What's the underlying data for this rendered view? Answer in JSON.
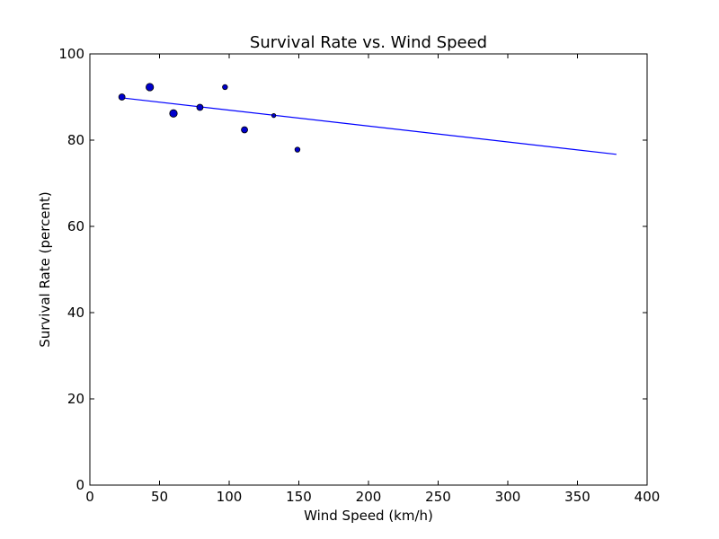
{
  "chart_data": {
    "type": "scatter",
    "title": "Survival Rate vs. Wind Speed",
    "xlabel": "Wind Speed (km/h)",
    "ylabel": "Survival Rate (percent)",
    "xlim": [
      0,
      400
    ],
    "ylim": [
      0,
      100
    ],
    "xticks": [
      "0",
      "50",
      "100",
      "150",
      "200",
      "250",
      "300",
      "350",
      "400"
    ],
    "yticks": [
      "0",
      "20",
      "40",
      "60",
      "80",
      "100"
    ],
    "grid": false,
    "legend": "none",
    "points": [
      {
        "x": 23,
        "y": 90.0,
        "size": "medium"
      },
      {
        "x": 43,
        "y": 92.3,
        "size": "large"
      },
      {
        "x": 60,
        "y": 86.2,
        "size": "large"
      },
      {
        "x": 79,
        "y": 87.6,
        "size": "medium"
      },
      {
        "x": 97,
        "y": 92.3,
        "size": "small"
      },
      {
        "x": 111,
        "y": 82.4,
        "size": "medium"
      },
      {
        "x": 132,
        "y": 85.7,
        "size": "tiny"
      },
      {
        "x": 149,
        "y": 77.8,
        "size": "small"
      }
    ],
    "trend_line": {
      "x": [
        23,
        378
      ],
      "y": [
        89.8,
        76.7
      ]
    },
    "colors": {
      "point_fill": "#0000cc",
      "point_edge": "#000000",
      "trend_line": "#0000ff",
      "axes": "#000000"
    }
  }
}
